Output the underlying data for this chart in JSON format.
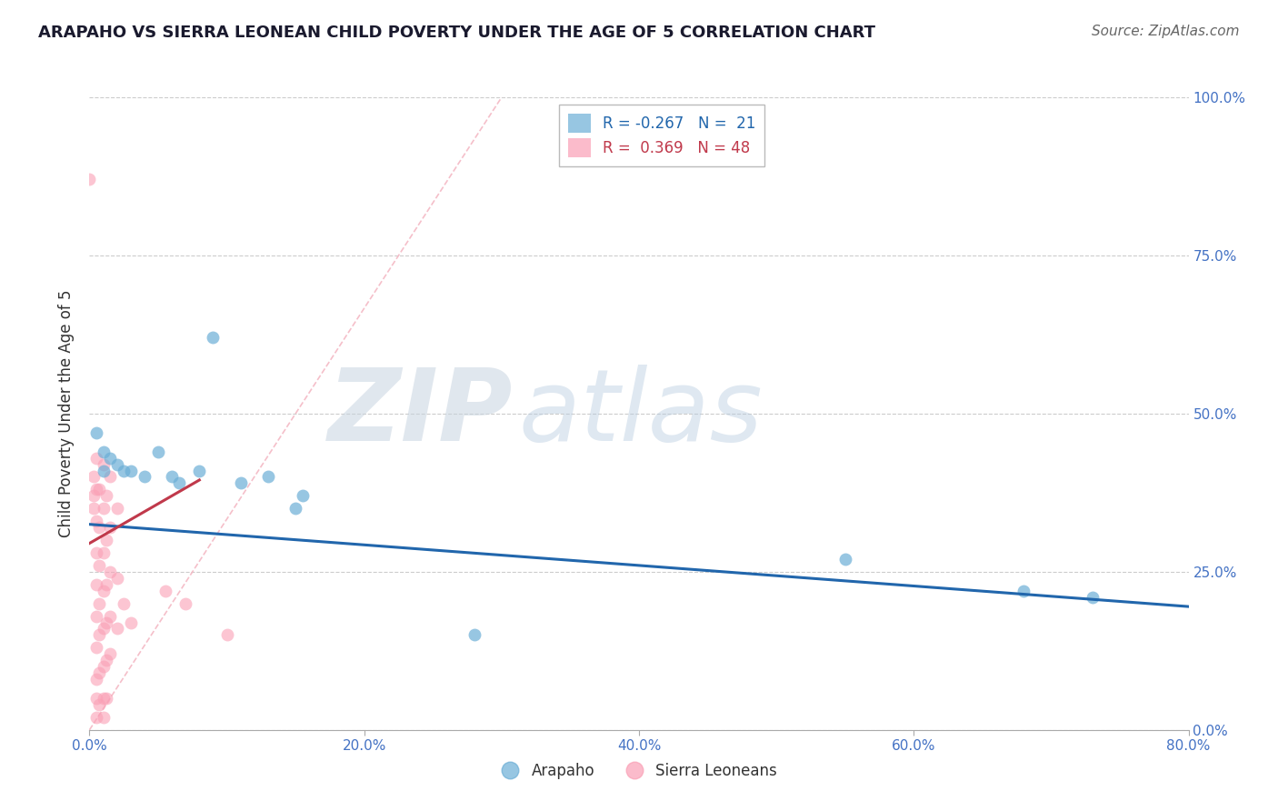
{
  "title": "ARAPAHO VS SIERRA LEONEAN CHILD POVERTY UNDER THE AGE OF 5 CORRELATION CHART",
  "source": "Source: ZipAtlas.com",
  "ylabel": "Child Poverty Under the Age of 5",
  "xlim": [
    0.0,
    0.8
  ],
  "ylim": [
    0.0,
    1.0
  ],
  "xticks": [
    0.0,
    0.2,
    0.4,
    0.6,
    0.8
  ],
  "yticks": [
    0.0,
    0.25,
    0.5,
    0.75,
    1.0
  ],
  "xtick_labels": [
    "0.0%",
    "20.0%",
    "40.0%",
    "60.0%",
    "80.0%"
  ],
  "ytick_labels": [
    "0.0%",
    "25.0%",
    "50.0%",
    "75.0%",
    "100.0%"
  ],
  "watermark_zip": "ZIP",
  "watermark_atlas": "atlas",
  "watermark_color_zip": "#c8d8e8",
  "watermark_color_atlas": "#b8cfe8",
  "watermark_alpha": 0.55,
  "arapaho_color": "#6baed6",
  "sierra_color": "#fa9fb5",
  "arapaho_trend_color": "#2166ac",
  "sierra_trend_color": "#c0394b",
  "diag_color": "#f4b8c4",
  "arapaho_points": [
    [
      0.005,
      0.47
    ],
    [
      0.01,
      0.44
    ],
    [
      0.01,
      0.41
    ],
    [
      0.015,
      0.43
    ],
    [
      0.02,
      0.42
    ],
    [
      0.025,
      0.41
    ],
    [
      0.03,
      0.41
    ],
    [
      0.04,
      0.4
    ],
    [
      0.05,
      0.44
    ],
    [
      0.06,
      0.4
    ],
    [
      0.065,
      0.39
    ],
    [
      0.08,
      0.41
    ],
    [
      0.09,
      0.62
    ],
    [
      0.11,
      0.39
    ],
    [
      0.13,
      0.4
    ],
    [
      0.15,
      0.35
    ],
    [
      0.155,
      0.37
    ],
    [
      0.28,
      0.15
    ],
    [
      0.55,
      0.27
    ],
    [
      0.68,
      0.22
    ],
    [
      0.73,
      0.21
    ]
  ],
  "sierra_points": [
    [
      0.0,
      0.87
    ],
    [
      0.003,
      0.4
    ],
    [
      0.003,
      0.37
    ],
    [
      0.003,
      0.35
    ],
    [
      0.005,
      0.43
    ],
    [
      0.005,
      0.38
    ],
    [
      0.005,
      0.33
    ],
    [
      0.005,
      0.28
    ],
    [
      0.005,
      0.23
    ],
    [
      0.005,
      0.18
    ],
    [
      0.005,
      0.13
    ],
    [
      0.005,
      0.08
    ],
    [
      0.005,
      0.05
    ],
    [
      0.005,
      0.02
    ],
    [
      0.007,
      0.38
    ],
    [
      0.007,
      0.32
    ],
    [
      0.007,
      0.26
    ],
    [
      0.007,
      0.2
    ],
    [
      0.007,
      0.15
    ],
    [
      0.007,
      0.09
    ],
    [
      0.007,
      0.04
    ],
    [
      0.01,
      0.42
    ],
    [
      0.01,
      0.35
    ],
    [
      0.01,
      0.28
    ],
    [
      0.01,
      0.22
    ],
    [
      0.01,
      0.16
    ],
    [
      0.01,
      0.1
    ],
    [
      0.01,
      0.05
    ],
    [
      0.01,
      0.02
    ],
    [
      0.012,
      0.37
    ],
    [
      0.012,
      0.3
    ],
    [
      0.012,
      0.23
    ],
    [
      0.012,
      0.17
    ],
    [
      0.012,
      0.11
    ],
    [
      0.012,
      0.05
    ],
    [
      0.015,
      0.4
    ],
    [
      0.015,
      0.32
    ],
    [
      0.015,
      0.25
    ],
    [
      0.015,
      0.18
    ],
    [
      0.015,
      0.12
    ],
    [
      0.02,
      0.35
    ],
    [
      0.02,
      0.24
    ],
    [
      0.02,
      0.16
    ],
    [
      0.025,
      0.2
    ],
    [
      0.03,
      0.17
    ],
    [
      0.055,
      0.22
    ],
    [
      0.07,
      0.2
    ],
    [
      0.1,
      0.15
    ]
  ],
  "background_color": "#ffffff",
  "grid_color": "#cccccc",
  "title_color": "#1a1a2e",
  "axis_label_color": "#333333",
  "tick_label_color": "#4472c4",
  "legend_label_color_1": "#2166ac",
  "legend_label_color_2": "#c0394b",
  "legend_text_1": "R = -0.267   N =  21",
  "legend_text_2": "R =  0.369   N = 48",
  "bottom_legend_arapaho": "Arapaho",
  "bottom_legend_sierra": "Sierra Leoneans"
}
